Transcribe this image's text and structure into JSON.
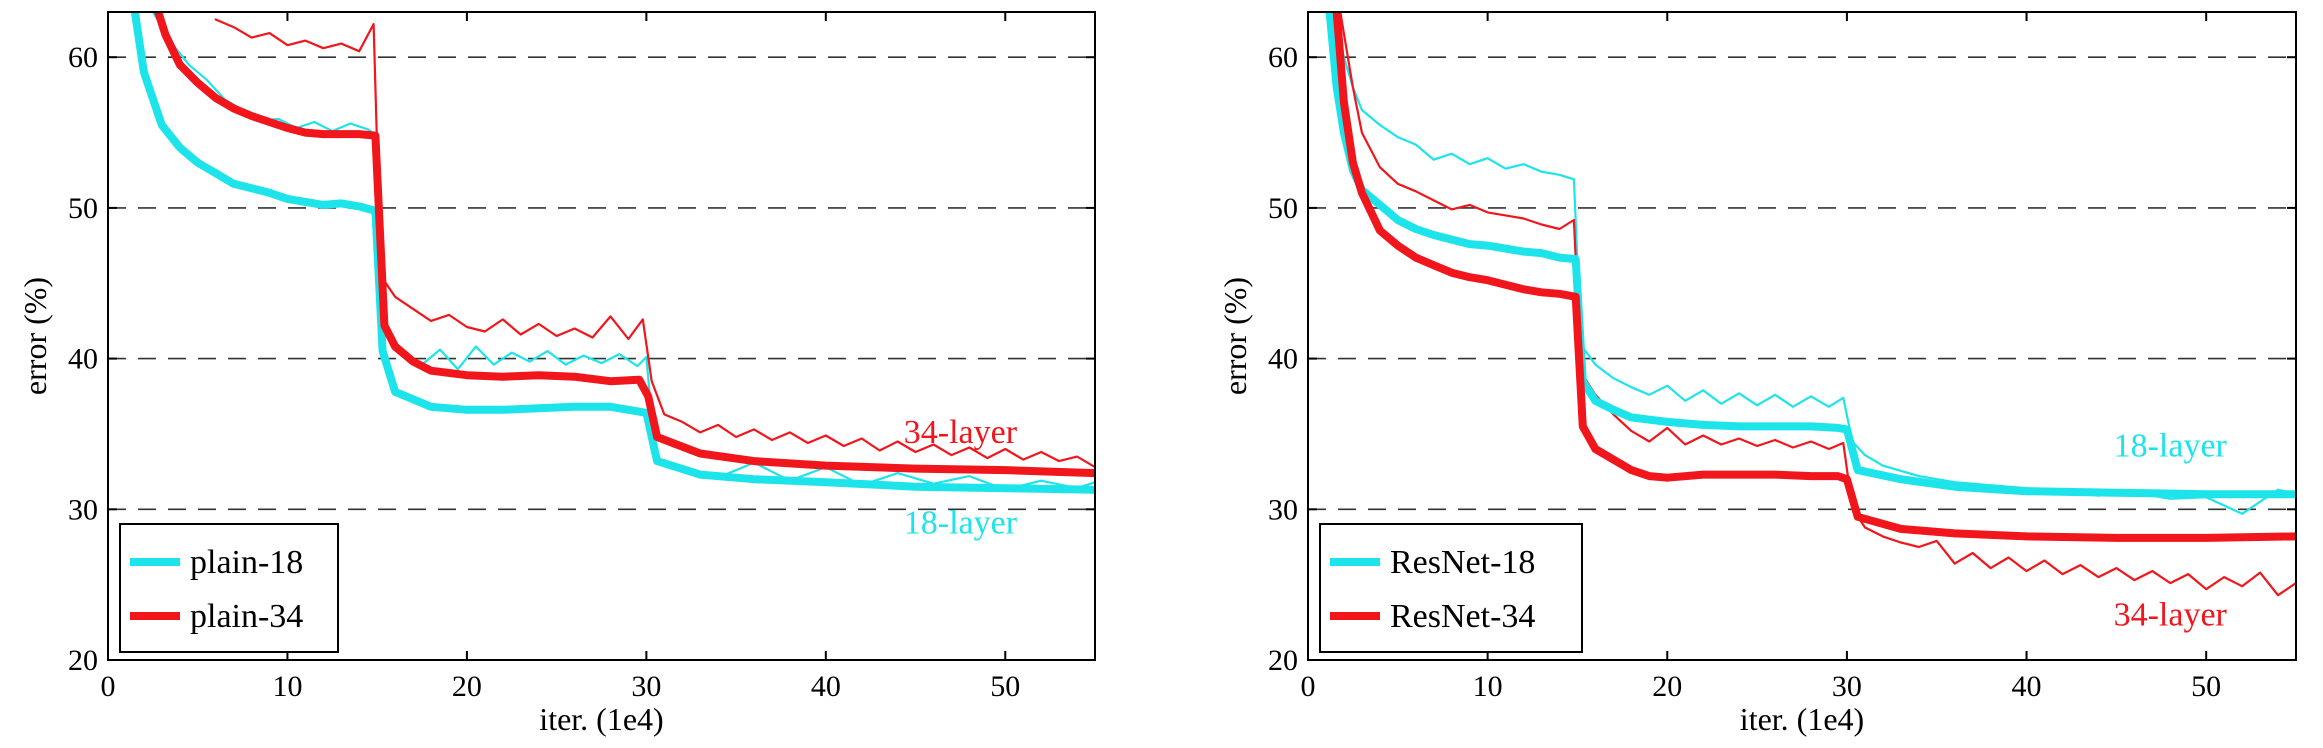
{
  "colors": {
    "cyan": "#1de4ea",
    "red": "#f0161c",
    "grid": "#333333",
    "axis": "#000000"
  },
  "chart_data": [
    {
      "type": "line",
      "xlabel": "iter. (1e4)",
      "ylabel": "error (%)",
      "xlim": [
        0,
        55
      ],
      "ylim": [
        20,
        63
      ],
      "xticks": [
        0,
        10,
        20,
        30,
        40,
        50
      ],
      "yticks": [
        20,
        30,
        40,
        50,
        60
      ],
      "grid": "horizontal-dashed",
      "legend_position": "bottom-left",
      "series": [
        {
          "name": "plain-18",
          "role": "val",
          "color": "cyan",
          "legend": true,
          "x": [
            1.5,
            2,
            3,
            4,
            5,
            6,
            7,
            8,
            9,
            10,
            11,
            12,
            13,
            14,
            14.9,
            15.3,
            16,
            17,
            18,
            20,
            22,
            24,
            26,
            28,
            29.5,
            30,
            30.6,
            33,
            36,
            40,
            45,
            50,
            55
          ],
          "values": [
            63,
            59,
            55.5,
            54,
            53,
            52.3,
            51.6,
            51.3,
            51,
            50.6,
            50.4,
            50.2,
            50.3,
            50.1,
            49.8,
            40.5,
            37.8,
            37.3,
            36.8,
            36.6,
            36.6,
            36.7,
            36.8,
            36.8,
            36.5,
            36.4,
            33.2,
            32.3,
            32,
            31.8,
            31.5,
            31.4,
            31.3
          ]
        },
        {
          "name": "plain-34",
          "role": "val",
          "color": "red",
          "legend": true,
          "x": [
            2.8,
            3.2,
            4,
            5,
            6,
            7,
            8,
            9,
            10,
            11,
            12,
            13,
            14,
            14.9,
            15.4,
            16,
            17,
            18,
            20,
            22,
            24,
            26,
            28,
            29.6,
            30.1,
            30.6,
            33,
            36,
            40,
            45,
            50,
            55
          ],
          "values": [
            63,
            61.5,
            59.5,
            58.3,
            57.3,
            56.6,
            56.1,
            55.7,
            55.3,
            55,
            54.9,
            54.9,
            54.9,
            54.8,
            42.2,
            40.8,
            39.8,
            39.2,
            38.9,
            38.8,
            38.9,
            38.8,
            38.5,
            38.6,
            37.5,
            34.8,
            33.7,
            33.2,
            32.9,
            32.7,
            32.6,
            32.4
          ]
        },
        {
          "name": "plain-18 train",
          "role": "train",
          "color": "cyan",
          "legend": false,
          "x": [
            2.5,
            3.5,
            4.5,
            5.5,
            6.5,
            7.5,
            8.5,
            9.5,
            10.5,
            11.5,
            12.5,
            13.5,
            14.5,
            15,
            15.5,
            16.5,
            17.5,
            18.5,
            19.5,
            20.5,
            21.5,
            22.5,
            23.5,
            24.5,
            25.5,
            26.5,
            27.5,
            28.5,
            29.5,
            30,
            30.5,
            32,
            34,
            36,
            38,
            40,
            42,
            44,
            46,
            48,
            50,
            52,
            54,
            55
          ],
          "values": [
            63,
            61,
            59.5,
            58.5,
            57.2,
            56.5,
            55.8,
            55.9,
            55.3,
            55.7,
            55.1,
            55.6,
            55.2,
            54.8,
            41.5,
            40.3,
            39.6,
            40.6,
            39.3,
            40.8,
            39.6,
            40.4,
            39.8,
            40.5,
            39.6,
            40.2,
            39.7,
            40.3,
            39.5,
            40.1,
            33.4,
            32.8,
            32.1,
            33.1,
            31.9,
            32.8,
            31.6,
            32.4,
            31.7,
            32.2,
            31.3,
            31.9,
            31.4,
            31.8
          ]
        },
        {
          "name": "plain-34 train",
          "role": "train",
          "color": "red",
          "legend": false,
          "x": [
            6,
            7,
            8,
            9,
            10,
            11,
            12,
            13,
            14,
            14.8,
            15.2,
            16,
            17,
            18,
            19,
            20,
            21,
            22,
            23,
            24,
            25,
            26,
            27,
            28,
            29,
            29.8,
            30.3,
            31,
            32,
            33,
            34,
            35,
            36,
            37,
            38,
            39,
            40,
            41,
            42,
            43,
            44,
            45,
            46,
            47,
            48,
            49,
            50,
            51,
            52,
            53,
            54,
            55
          ],
          "values": [
            62.5,
            62,
            61.3,
            61.6,
            60.8,
            61.1,
            60.6,
            60.9,
            60.4,
            62.2,
            45.5,
            44.1,
            43.3,
            42.5,
            42.9,
            42.1,
            41.8,
            42.6,
            41.6,
            42.3,
            41.5,
            42,
            41.4,
            42.8,
            41.3,
            42.6,
            38.5,
            36.3,
            35.8,
            35.1,
            35.6,
            34.8,
            35.3,
            34.6,
            35.1,
            34.4,
            34.9,
            34.2,
            34.7,
            33.9,
            34.5,
            33.8,
            34.3,
            33.6,
            34.1,
            33.4,
            34,
            33.3,
            33.8,
            33.2,
            33.5,
            32.8
          ]
        }
      ],
      "annotations": [
        {
          "text": "34-layer",
          "x": 47.5,
          "y": 34.4,
          "color": "red"
        },
        {
          "text": "18-layer",
          "x": 47.5,
          "y": 28.4,
          "color": "cyan"
        }
      ]
    },
    {
      "type": "line",
      "xlabel": "iter. (1e4)",
      "ylabel": "error (%)",
      "xlim": [
        0,
        55
      ],
      "ylim": [
        20,
        63
      ],
      "xticks": [
        0,
        10,
        20,
        30,
        40,
        50
      ],
      "yticks": [
        20,
        30,
        40,
        50,
        60
      ],
      "grid": "horizontal-dashed",
      "legend_position": "bottom-left",
      "series": [
        {
          "name": "ResNet-18",
          "role": "val",
          "color": "cyan",
          "legend": true,
          "x": [
            1.2,
            1.6,
            2,
            2.5,
            3,
            4,
            5,
            6,
            7,
            8,
            9,
            10,
            11,
            12,
            13,
            14,
            14.9,
            15.3,
            16,
            17,
            18,
            20,
            22,
            24,
            26,
            28,
            29.5,
            30,
            30.6,
            33,
            36,
            40,
            45,
            50,
            55
          ],
          "values": [
            63,
            58,
            55,
            52.5,
            51.2,
            50.2,
            49.2,
            48.6,
            48.2,
            47.9,
            47.6,
            47.5,
            47.3,
            47.1,
            47,
            46.7,
            46.6,
            38.5,
            37.2,
            36.6,
            36.1,
            35.8,
            35.6,
            35.5,
            35.5,
            35.5,
            35.4,
            35.3,
            32.6,
            32,
            31.5,
            31.2,
            31.1,
            31,
            31
          ]
        },
        {
          "name": "ResNet-34",
          "role": "val",
          "color": "red",
          "legend": true,
          "x": [
            1.6,
            2,
            2.5,
            3,
            4,
            5,
            6,
            7,
            8,
            9,
            10,
            11,
            12,
            13,
            14,
            14.9,
            15.3,
            16,
            17,
            18,
            19,
            20,
            22,
            24,
            26,
            28,
            29.5,
            30,
            30.6,
            33,
            36,
            40,
            45,
            50,
            55
          ],
          "values": [
            63,
            57,
            53,
            51,
            48.5,
            47.5,
            46.7,
            46.2,
            45.7,
            45.4,
            45.2,
            44.9,
            44.6,
            44.4,
            44.3,
            44.1,
            35.5,
            34,
            33.3,
            32.6,
            32.2,
            32.1,
            32.3,
            32.3,
            32.3,
            32.2,
            32.2,
            32,
            29.5,
            28.7,
            28.4,
            28.2,
            28.1,
            28.1,
            28.2
          ]
        },
        {
          "name": "ResNet-18 train",
          "role": "train",
          "color": "cyan",
          "legend": false,
          "x": [
            1.5,
            2,
            2.5,
            3,
            4,
            5,
            6,
            7,
            8,
            9,
            10,
            11,
            12,
            13,
            14,
            14.8,
            15.2,
            16,
            17,
            18,
            19,
            20,
            21,
            22,
            23,
            24,
            25,
            26,
            27,
            28,
            29,
            29.8,
            30.3,
            31,
            32,
            34,
            36,
            38,
            40,
            42,
            44,
            46,
            48,
            50,
            52,
            54,
            55
          ],
          "values": [
            63,
            60,
            58,
            56.5,
            55.5,
            54.7,
            54.2,
            53.2,
            53.6,
            52.9,
            53.3,
            52.6,
            52.9,
            52.4,
            52.2,
            51.9,
            40.9,
            39.6,
            38.7,
            38.1,
            37.6,
            38.2,
            37.2,
            37.9,
            37,
            37.7,
            36.9,
            37.6,
            36.8,
            37.5,
            36.8,
            37.4,
            34.5,
            33.6,
            32.9,
            32.2,
            31.8,
            31.6,
            31.4,
            31.2,
            30.9,
            31.1,
            30.7,
            30.8,
            29.7,
            31.3,
            31
          ]
        },
        {
          "name": "ResNet-34 train",
          "role": "train",
          "color": "red",
          "legend": false,
          "x": [
            1.8,
            2.5,
            3,
            4,
            5,
            6,
            7,
            8,
            9,
            10,
            11,
            12,
            13,
            14,
            14.8,
            15.2,
            16,
            17,
            18,
            19,
            20,
            21,
            22,
            23,
            24,
            25,
            26,
            27,
            28,
            29,
            29.8,
            30.3,
            31,
            32,
            33,
            34,
            35,
            36,
            37,
            38,
            39,
            40,
            41,
            42,
            43,
            44,
            45,
            46,
            47,
            48,
            49,
            50,
            51,
            52,
            53,
            54,
            55
          ],
          "values": [
            63,
            58,
            55,
            52.7,
            51.6,
            51.1,
            50.5,
            49.9,
            50.2,
            49.7,
            49.5,
            49.3,
            48.9,
            48.6,
            49.2,
            39.1,
            37.6,
            36.3,
            35.2,
            34.5,
            35.4,
            34.3,
            34.9,
            34.3,
            34.7,
            34.2,
            34.6,
            34.1,
            34.5,
            34,
            34.4,
            30.1,
            28.8,
            28.2,
            27.8,
            27.5,
            27.9,
            26.4,
            27.1,
            26.1,
            26.8,
            25.9,
            26.6,
            25.7,
            26.3,
            25.5,
            26.1,
            25.3,
            25.9,
            25.1,
            25.7,
            24.7,
            25.5,
            24.9,
            25.8,
            24.3,
            25.1
          ]
        }
      ],
      "annotations": [
        {
          "text": "18-layer",
          "x": 48,
          "y": 33.5,
          "color": "cyan"
        },
        {
          "text": "34-layer",
          "x": 48,
          "y": 22.3,
          "color": "red"
        }
      ]
    }
  ]
}
